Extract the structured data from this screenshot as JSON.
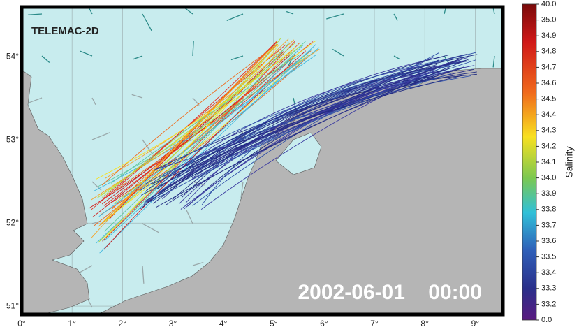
{
  "map": {
    "title": "TELEMAC-2D",
    "timestamp": "2002-06-01    00:00",
    "xlim": [
      0,
      9.55
    ],
    "ylim": [
      50.9,
      54.6
    ],
    "xticks": [
      {
        "value": 0,
        "label": "0°"
      },
      {
        "value": 1,
        "label": "1°"
      },
      {
        "value": 2,
        "label": "2°"
      },
      {
        "value": 3,
        "label": "3°"
      },
      {
        "value": 4,
        "label": "4°"
      },
      {
        "value": 5,
        "label": "5°"
      },
      {
        "value": 6,
        "label": "6°"
      },
      {
        "value": 7,
        "label": "7°"
      },
      {
        "value": 8,
        "label": "8°"
      },
      {
        "value": 9,
        "label": "9°"
      }
    ],
    "yticks": [
      {
        "value": 51,
        "label": "51°"
      },
      {
        "value": 52,
        "label": "52°"
      },
      {
        "value": 53,
        "label": "53°"
      },
      {
        "value": 54,
        "label": "54°"
      }
    ]
  },
  "colorbar": {
    "label": "Salinity",
    "ticks": [
      {
        "value": 40,
        "label": "40.0"
      },
      {
        "value": 35,
        "label": "35.0"
      },
      34.9,
      34.8,
      34.7,
      34.6,
      34.5,
      34.4,
      34.3,
      34.2,
      34.1,
      {
        "value": 34,
        "label": "34.0"
      },
      33.9,
      33.8,
      33.7,
      33.6,
      33.5,
      33.4,
      33.3,
      33.2,
      {
        "value": 0,
        "label": "0.0"
      }
    ]
  }
}
